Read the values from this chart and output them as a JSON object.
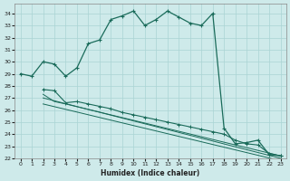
{
  "xlabel": "Humidex (Indice chaleur)",
  "bg_color": "#ceeaea",
  "grid_color": "#aad4d4",
  "line_color": "#1a6b5a",
  "xlim": [
    -0.5,
    23.5
  ],
  "ylim": [
    22,
    34.8
  ],
  "yticks": [
    22,
    23,
    24,
    25,
    26,
    27,
    28,
    29,
    30,
    31,
    32,
    33,
    34
  ],
  "xticks": [
    0,
    1,
    2,
    3,
    4,
    5,
    6,
    7,
    8,
    9,
    10,
    11,
    12,
    13,
    14,
    15,
    16,
    17,
    18,
    19,
    20,
    21,
    22,
    23
  ],
  "main_x": [
    0,
    1,
    2,
    3,
    4,
    5,
    6,
    7,
    8,
    9,
    10,
    11,
    12,
    13,
    14,
    15,
    16,
    17,
    18,
    19,
    20,
    21,
    22,
    23
  ],
  "main_y": [
    29.0,
    28.8,
    30.0,
    29.8,
    28.8,
    29.5,
    31.5,
    31.8,
    33.5,
    33.8,
    34.2,
    33.0,
    33.5,
    34.2,
    33.7,
    33.2,
    33.0,
    34.0,
    24.5,
    23.2,
    23.3,
    23.5,
    22.3,
    22.2
  ],
  "line2_x": [
    2,
    3,
    4,
    5,
    6,
    7,
    8,
    9,
    10,
    11,
    12,
    13,
    14,
    15,
    16,
    17,
    18,
    19,
    20,
    21,
    22,
    23
  ],
  "line2_y": [
    27.7,
    27.6,
    26.6,
    26.7,
    26.5,
    26.3,
    26.1,
    25.8,
    25.6,
    25.4,
    25.2,
    25.0,
    24.8,
    24.6,
    24.4,
    24.2,
    24.0,
    23.5,
    23.2,
    23.1,
    22.4,
    22.2
  ],
  "line3_x": [
    2,
    3,
    4,
    23
  ],
  "line3_y": [
    27.3,
    26.7,
    26.5,
    22.2
  ],
  "line4_x": [
    2,
    23
  ],
  "line4_y": [
    27.0,
    22.0
  ],
  "line5_x": [
    2,
    23
  ],
  "line5_y": [
    26.5,
    21.8
  ]
}
